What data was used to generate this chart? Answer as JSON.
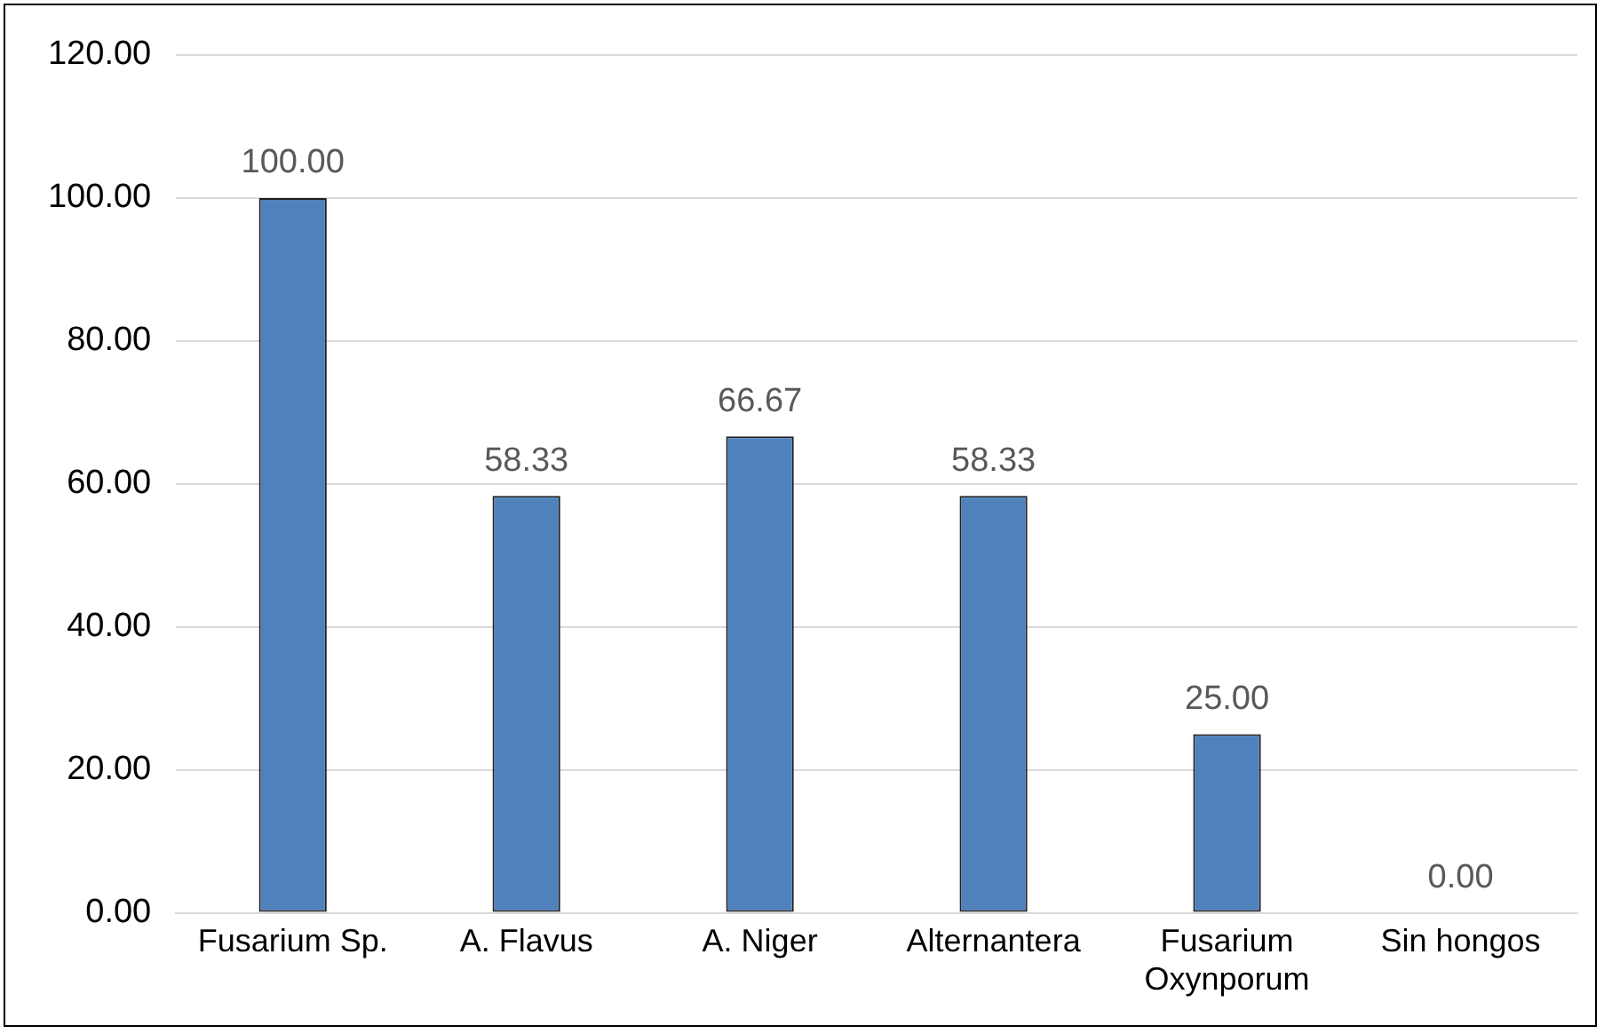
{
  "chart_data": {
    "type": "bar",
    "categories": [
      "Fusarium Sp.",
      "A. Flavus",
      "A. Niger",
      "Alternantera",
      "Fusarium Oxynporum",
      "Sin hongos"
    ],
    "values": [
      100,
      58.33,
      66.67,
      58.33,
      25,
      0
    ],
    "value_labels": [
      "100.00",
      "58.33",
      "66.67",
      "58.33",
      "25.00",
      "0.00"
    ],
    "color": "#4f81bd",
    "ylim": [
      0,
      120
    ],
    "yticks": [
      {
        "value": 0,
        "label": "0.00"
      },
      {
        "value": 20,
        "label": "20.00"
      },
      {
        "value": 40,
        "label": "40.00"
      },
      {
        "value": 60,
        "label": "60.00"
      },
      {
        "value": 80,
        "label": "80.00"
      },
      {
        "value": 100,
        "label": "100.00"
      },
      {
        "value": 120,
        "label": "120.00"
      }
    ],
    "grid": "y",
    "legend": false
  }
}
